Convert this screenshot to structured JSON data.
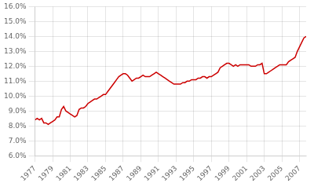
{
  "chart_data": {
    "type": "line",
    "x": [
      1977,
      1977.25,
      1977.5,
      1977.75,
      1978,
      1978.25,
      1978.5,
      1978.75,
      1979,
      1979.25,
      1979.5,
      1979.75,
      1980,
      1980.25,
      1980.5,
      1980.75,
      1981,
      1981.25,
      1981.5,
      1981.75,
      1982,
      1982.25,
      1982.5,
      1982.75,
      1983,
      1983.25,
      1983.5,
      1983.75,
      1984,
      1984.25,
      1984.5,
      1984.75,
      1985,
      1985.25,
      1985.5,
      1985.75,
      1986,
      1986.25,
      1986.5,
      1986.75,
      1987,
      1987.25,
      1987.5,
      1987.75,
      1988,
      1988.25,
      1988.5,
      1988.75,
      1989,
      1989.25,
      1989.5,
      1989.75,
      1990,
      1990.25,
      1990.5,
      1990.75,
      1991,
      1991.25,
      1991.5,
      1991.75,
      1992,
      1992.25,
      1992.5,
      1992.75,
      1993,
      1993.25,
      1993.5,
      1993.75,
      1994,
      1994.25,
      1994.5,
      1994.75,
      1995,
      1995.25,
      1995.5,
      1995.75,
      1996,
      1996.25,
      1996.5,
      1996.75,
      1997,
      1997.25,
      1997.5,
      1997.75,
      1998,
      1998.25,
      1998.5,
      1998.75,
      1999,
      1999.25,
      1999.5,
      1999.75,
      2000,
      2000.25,
      2000.5,
      2000.75,
      2001,
      2001.25,
      2001.5,
      2001.75,
      2002,
      2002.25,
      2002.5,
      2002.75,
      2003,
      2003.25,
      2003.5,
      2003.75,
      2004,
      2004.25,
      2004.5,
      2004.75,
      2005,
      2005.25,
      2005.5,
      2005.75,
      2006,
      2006.25,
      2006.5,
      2006.75,
      2007,
      2007.25,
      2007.5,
      2007.75
    ],
    "values": [
      0.084,
      0.085,
      0.084,
      0.085,
      0.082,
      0.082,
      0.081,
      0.082,
      0.083,
      0.084,
      0.086,
      0.086,
      0.091,
      0.093,
      0.09,
      0.089,
      0.088,
      0.087,
      0.086,
      0.087,
      0.091,
      0.092,
      0.092,
      0.093,
      0.095,
      0.096,
      0.097,
      0.098,
      0.098,
      0.099,
      0.1,
      0.101,
      0.101,
      0.103,
      0.105,
      0.107,
      0.109,
      0.111,
      0.113,
      0.114,
      0.115,
      0.115,
      0.114,
      0.112,
      0.11,
      0.111,
      0.112,
      0.112,
      0.113,
      0.114,
      0.113,
      0.113,
      0.113,
      0.114,
      0.115,
      0.116,
      0.115,
      0.114,
      0.113,
      0.112,
      0.111,
      0.11,
      0.109,
      0.108,
      0.108,
      0.108,
      0.108,
      0.109,
      0.109,
      0.11,
      0.11,
      0.111,
      0.111,
      0.111,
      0.112,
      0.112,
      0.113,
      0.113,
      0.112,
      0.113,
      0.113,
      0.114,
      0.115,
      0.116,
      0.119,
      0.12,
      0.121,
      0.122,
      0.122,
      0.121,
      0.12,
      0.121,
      0.12,
      0.121,
      0.121,
      0.121,
      0.121,
      0.121,
      0.12,
      0.12,
      0.12,
      0.121,
      0.121,
      0.122,
      0.115,
      0.115,
      0.116,
      0.117,
      0.118,
      0.119,
      0.12,
      0.121,
      0.121,
      0.121,
      0.121,
      0.123,
      0.124,
      0.125,
      0.126,
      0.13,
      0.133,
      0.136,
      0.139,
      0.14
    ],
    "color": "#cc0000",
    "xlim": [
      1977,
      2007.75
    ],
    "xticks": [
      1977,
      1979,
      1981,
      1983,
      1985,
      1987,
      1989,
      1991,
      1993,
      1995,
      1997,
      1999,
      2001,
      2003,
      2005,
      2007
    ],
    "ylim": [
      0.06,
      0.16
    ],
    "yticks": [
      {
        "value": 0.06,
        "label": "6.0%"
      },
      {
        "value": 0.07,
        "label": "7.0%"
      },
      {
        "value": 0.08,
        "label": "8.0%"
      },
      {
        "value": 0.09,
        "label": "9.0%"
      },
      {
        "value": 0.1,
        "label": "10.0%"
      },
      {
        "value": 0.11,
        "label": "11.0%"
      },
      {
        "value": 0.12,
        "label": "12.0%"
      },
      {
        "value": 0.13,
        "label": "13.0%"
      },
      {
        "value": 0.14,
        "label": "14.0%"
      },
      {
        "value": 0.15,
        "label": "15.0%"
      },
      {
        "value": 0.16,
        "label": "16.0%"
      }
    ],
    "grid": true
  }
}
